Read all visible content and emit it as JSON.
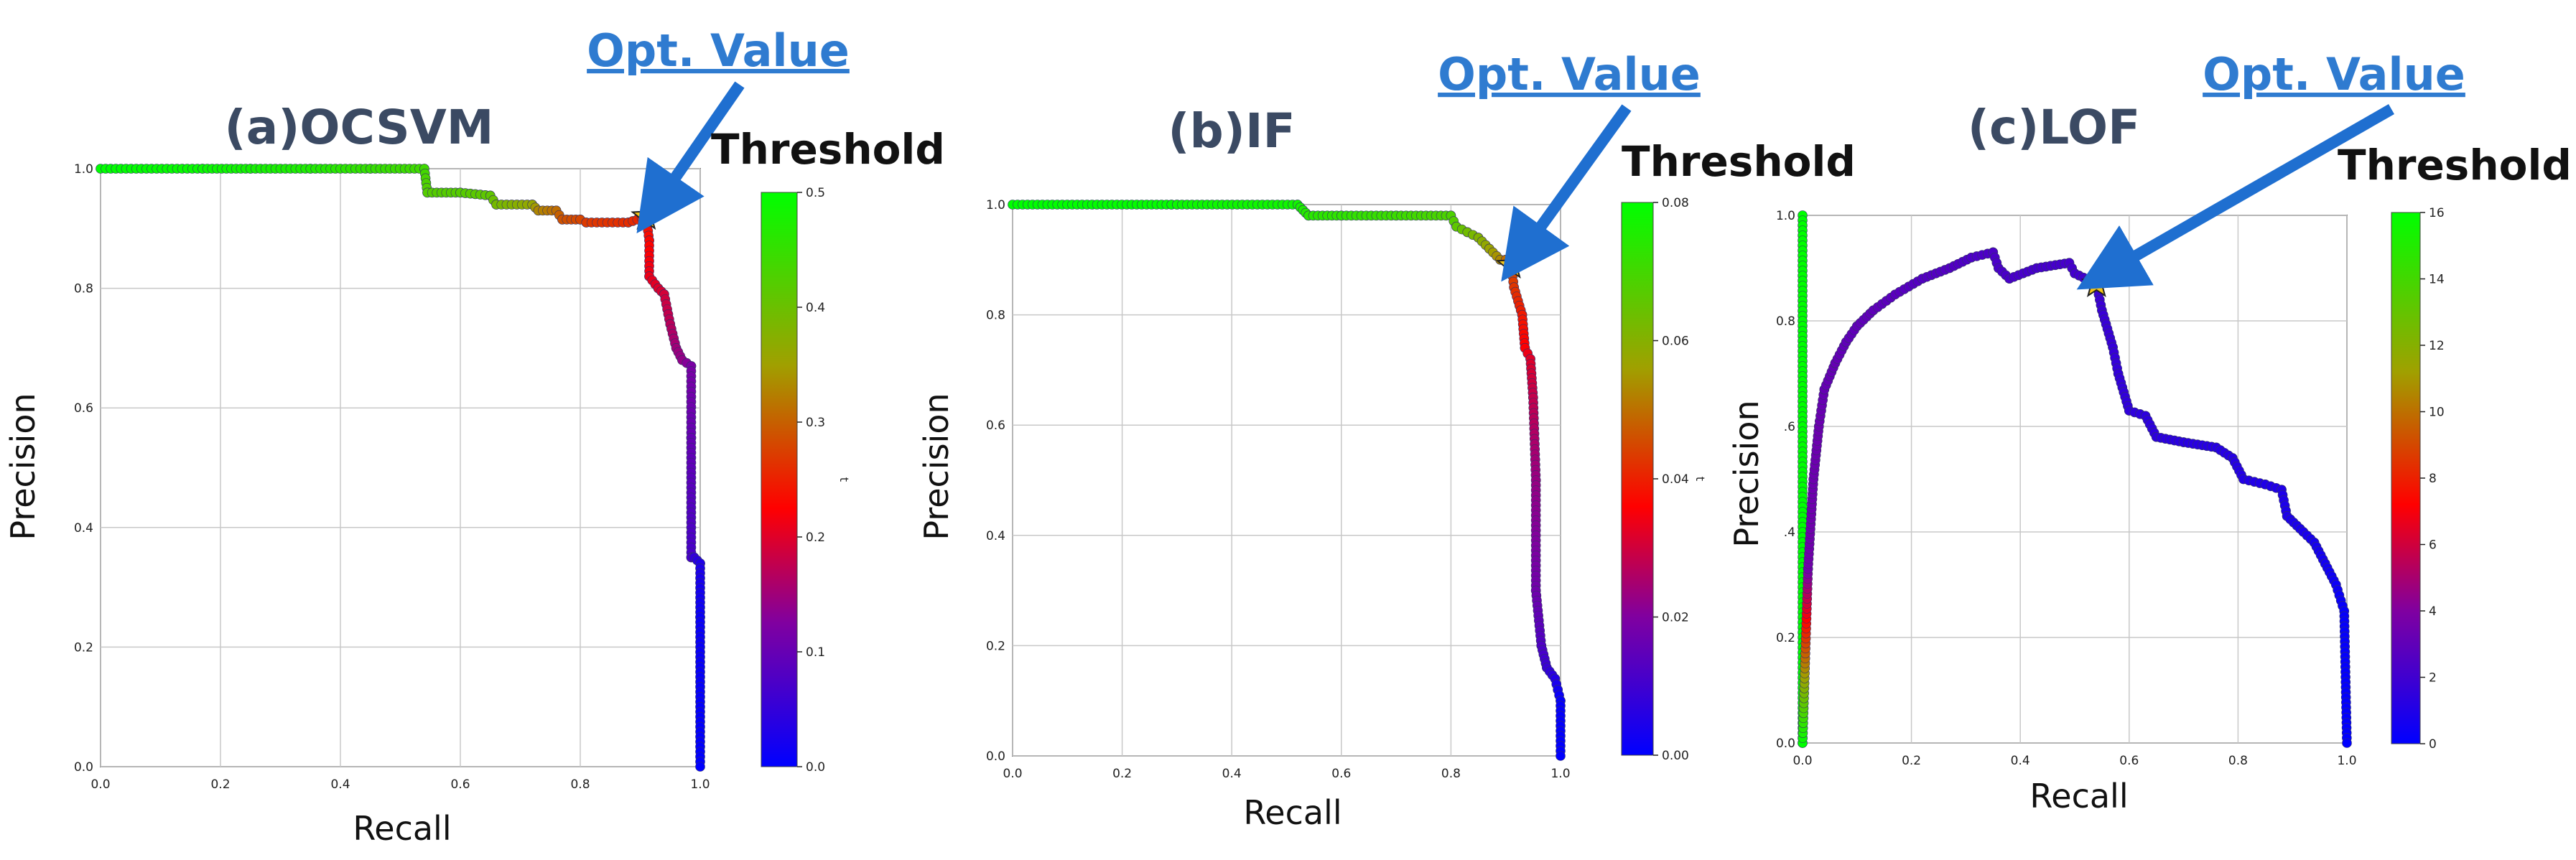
{
  "annotation": {
    "opt_label": "Opt. Value"
  },
  "colorbar_title": "Threshold",
  "chart_data": [
    {
      "type": "line",
      "title": "(a)OCSVM",
      "xlabel": "Recall",
      "ylabel": "Precision",
      "xlim": [
        0.0,
        1.0
      ],
      "ylim": [
        0.0,
        1.0
      ],
      "grid": true,
      "x_ticks": [
        "0.0",
        "0.2",
        "0.4",
        "0.6",
        "0.8",
        "1.0"
      ],
      "y_ticks": [
        "0.0",
        "0.2",
        "0.4",
        "0.6",
        "0.8",
        "1.0"
      ],
      "colorbar": {
        "label": "t",
        "min": 0.0,
        "max": 0.5,
        "ticks": [
          "0.0",
          "0.1",
          "0.2",
          "0.3",
          "0.4",
          "0.5"
        ]
      },
      "optimal_point": {
        "recall": 0.91,
        "precision": 0.92
      },
      "points": [
        [
          0.0,
          1.0,
          0.5
        ],
        [
          0.17,
          1.0,
          0.49
        ],
        [
          0.25,
          1.0,
          0.48
        ],
        [
          0.35,
          1.0,
          0.47
        ],
        [
          0.45,
          1.0,
          0.45
        ],
        [
          0.54,
          1.0,
          0.44
        ],
        [
          0.545,
          0.96,
          0.42
        ],
        [
          0.6,
          0.96,
          0.42
        ],
        [
          0.65,
          0.955,
          0.41
        ],
        [
          0.66,
          0.94,
          0.39
        ],
        [
          0.72,
          0.94,
          0.36
        ],
        [
          0.73,
          0.93,
          0.33
        ],
        [
          0.76,
          0.93,
          0.31
        ],
        [
          0.77,
          0.915,
          0.29
        ],
        [
          0.8,
          0.915,
          0.28
        ],
        [
          0.81,
          0.91,
          0.27
        ],
        [
          0.88,
          0.91,
          0.26
        ],
        [
          0.91,
          0.92,
          0.25
        ],
        [
          0.915,
          0.88,
          0.23
        ],
        [
          0.915,
          0.82,
          0.21
        ],
        [
          0.93,
          0.8,
          0.2
        ],
        [
          0.94,
          0.79,
          0.19
        ],
        [
          0.95,
          0.74,
          0.17
        ],
        [
          0.96,
          0.7,
          0.15
        ],
        [
          0.97,
          0.68,
          0.14
        ],
        [
          0.985,
          0.67,
          0.12
        ],
        [
          0.985,
          0.55,
          0.1
        ],
        [
          0.985,
          0.35,
          0.07
        ],
        [
          0.99,
          0.35,
          0.05
        ],
        [
          1.0,
          0.34,
          0.03
        ],
        [
          1.0,
          0.25,
          0.01
        ],
        [
          1.0,
          0.0,
          0.0
        ]
      ]
    },
    {
      "type": "line",
      "title": "(b)IF",
      "xlabel": "Recall",
      "ylabel": "Precision",
      "xlim": [
        0.0,
        1.0
      ],
      "ylim": [
        0.0,
        1.0
      ],
      "grid": true,
      "x_ticks": [
        "0.0",
        "0.2",
        "0.4",
        "0.6",
        "0.8",
        "1.0"
      ],
      "y_ticks": [
        "0.0",
        "0.2",
        "0.4",
        "0.6",
        "0.8",
        "1.0"
      ],
      "colorbar": {
        "label": "t",
        "min": 0.0,
        "max": 0.09,
        "ticks": [
          "0.00",
          "0.02",
          "0.04",
          "0.06",
          "0.08"
        ]
      },
      "optimal_point": {
        "recall": 0.91,
        "precision": 0.89
      },
      "points": [
        [
          0.0,
          1.0,
          0.09
        ],
        [
          0.29,
          1.0,
          0.089
        ],
        [
          0.3,
          1.0,
          0.088
        ],
        [
          0.52,
          1.0,
          0.087
        ],
        [
          0.53,
          0.99,
          0.085
        ],
        [
          0.54,
          0.98,
          0.083
        ],
        [
          0.6,
          0.98,
          0.082
        ],
        [
          0.7,
          0.98,
          0.08
        ],
        [
          0.8,
          0.98,
          0.077
        ],
        [
          0.81,
          0.96,
          0.074
        ],
        [
          0.83,
          0.95,
          0.071
        ],
        [
          0.85,
          0.94,
          0.068
        ],
        [
          0.87,
          0.92,
          0.064
        ],
        [
          0.89,
          0.9,
          0.06
        ],
        [
          0.9,
          0.9,
          0.056
        ],
        [
          0.91,
          0.89,
          0.052
        ],
        [
          0.915,
          0.85,
          0.048
        ],
        [
          0.93,
          0.8,
          0.044
        ],
        [
          0.935,
          0.74,
          0.04
        ],
        [
          0.945,
          0.72,
          0.036
        ],
        [
          0.95,
          0.65,
          0.032
        ],
        [
          0.955,
          0.5,
          0.026
        ],
        [
          0.955,
          0.3,
          0.02
        ],
        [
          0.965,
          0.2,
          0.014
        ],
        [
          0.975,
          0.16,
          0.01
        ],
        [
          0.99,
          0.14,
          0.006
        ],
        [
          0.995,
          0.12,
          0.003
        ],
        [
          1.0,
          0.1,
          0.001
        ],
        [
          1.0,
          0.0,
          0.0
        ]
      ]
    },
    {
      "type": "line",
      "title": "(c)LOF",
      "xlabel": "Recall",
      "ylabel": "Precision",
      "xlim": [
        0.0,
        1.0
      ],
      "ylim": [
        0.0,
        1.0
      ],
      "grid": true,
      "x_ticks": [
        "0.0",
        "0.2",
        "0.4",
        "0.6",
        "0.8",
        "1.0"
      ],
      "y_ticks": [
        "0.0",
        "0.2",
        ".4",
        ".6",
        "0.8",
        "1.0"
      ],
      "colorbar": {
        "label": "",
        "min": 0,
        "max": 16,
        "ticks": [
          "0",
          "2",
          "4",
          "6",
          "8",
          "10",
          "12",
          "14",
          "16"
        ]
      },
      "optimal_point": {
        "recall": 0.54,
        "precision": 0.87
      },
      "points": [
        [
          0.0,
          1.0,
          16
        ],
        [
          0.0,
          0.0,
          16
        ],
        [
          0.01,
          0.33,
          3.6
        ],
        [
          0.02,
          0.5,
          3.4
        ],
        [
          0.03,
          0.6,
          3.4
        ],
        [
          0.04,
          0.67,
          3.2
        ],
        [
          0.06,
          0.72,
          3.2
        ],
        [
          0.08,
          0.76,
          3.0
        ],
        [
          0.1,
          0.79,
          3.0
        ],
        [
          0.13,
          0.82,
          3.0
        ],
        [
          0.17,
          0.85,
          2.8
        ],
        [
          0.22,
          0.88,
          2.6
        ],
        [
          0.27,
          0.9,
          2.6
        ],
        [
          0.31,
          0.92,
          2.4
        ],
        [
          0.35,
          0.93,
          2.4
        ],
        [
          0.36,
          0.9,
          2.3
        ],
        [
          0.38,
          0.88,
          2.3
        ],
        [
          0.43,
          0.9,
          2.2
        ],
        [
          0.49,
          0.91,
          2.2
        ],
        [
          0.5,
          0.89,
          2.1
        ],
        [
          0.54,
          0.87,
          2.0
        ],
        [
          0.55,
          0.82,
          1.8
        ],
        [
          0.57,
          0.75,
          1.7
        ],
        [
          0.58,
          0.7,
          1.6
        ],
        [
          0.6,
          0.63,
          1.5
        ],
        [
          0.63,
          0.62,
          1.4
        ],
        [
          0.65,
          0.58,
          1.4
        ],
        [
          0.7,
          0.57,
          1.3
        ],
        [
          0.76,
          0.56,
          1.2
        ],
        [
          0.79,
          0.54,
          1.2
        ],
        [
          0.81,
          0.5,
          1.1
        ],
        [
          0.85,
          0.49,
          1.0
        ],
        [
          0.88,
          0.48,
          1.0
        ],
        [
          0.89,
          0.43,
          0.9
        ],
        [
          0.92,
          0.4,
          0.8
        ],
        [
          0.94,
          0.38,
          0.7
        ],
        [
          0.96,
          0.34,
          0.6
        ],
        [
          0.98,
          0.3,
          0.4
        ],
        [
          0.995,
          0.25,
          0.2
        ],
        [
          1.0,
          0.0,
          0.0
        ]
      ]
    }
  ]
}
